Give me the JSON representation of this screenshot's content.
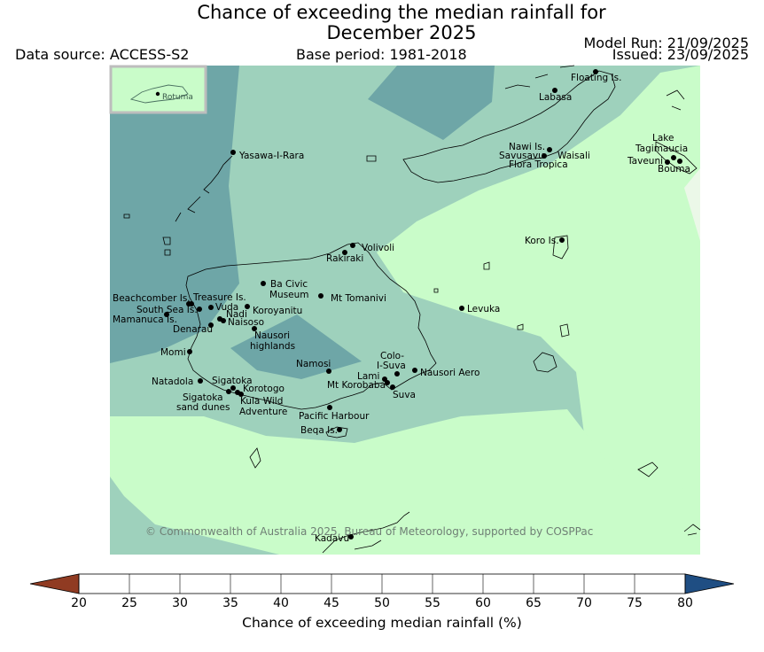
{
  "title_line1": "Chance of exceeding the median rainfall for",
  "title_line2": "December 2025",
  "data_source": "Data source: ACCESS-S2",
  "base_period": "Base period: 1981-2018",
  "model_run": "Model Run: 21/09/2025",
  "issued": "Issued: 23/09/2025",
  "inset_label": "Rotuma",
  "credit": "© Commonwealth of Australia 2025, Bureau of Meteorology, supported by COSPPac",
  "places": [
    {
      "name": "Floating Is."
    },
    {
      "name": "Labasa"
    },
    {
      "name": "Yasawa-I-Rara"
    },
    {
      "name": "Nawi Is."
    },
    {
      "name": "Savusavu"
    },
    {
      "name": "Waisali"
    },
    {
      "name": "Flora Tropica"
    },
    {
      "name": "Lake"
    },
    {
      "name": "Tagimaucia"
    },
    {
      "name": "Taveuni"
    },
    {
      "name": "Bouma"
    },
    {
      "name": "Koro Is."
    },
    {
      "name": "Volivoli"
    },
    {
      "name": "Rakiraki"
    },
    {
      "name": "Ba Civic"
    },
    {
      "name": "Museum"
    },
    {
      "name": "Mt Tomanivi"
    },
    {
      "name": "Beachcomber Is."
    },
    {
      "name": "Treasure Is."
    },
    {
      "name": "South Sea Is."
    },
    {
      "name": "Vuda"
    },
    {
      "name": "Koroyanitu"
    },
    {
      "name": "Levuka"
    },
    {
      "name": "Mamanuca Is."
    },
    {
      "name": "Nadi"
    },
    {
      "name": "Naisoso"
    },
    {
      "name": "Denarau"
    },
    {
      "name": "Nausori"
    },
    {
      "name": "highlands"
    },
    {
      "name": "Momi"
    },
    {
      "name": "Namosi"
    },
    {
      "name": "Colo-"
    },
    {
      "name": "I-Suva"
    },
    {
      "name": "Nausori Aero"
    },
    {
      "name": "Lami"
    },
    {
      "name": "Mt Korobaba"
    },
    {
      "name": "Suva"
    },
    {
      "name": "Natadola"
    },
    {
      "name": "Sigatoka"
    },
    {
      "name": "Korotogo"
    },
    {
      "name": "Sigatoka"
    },
    {
      "name": "sand dunes"
    },
    {
      "name": "Kula Wild"
    },
    {
      "name": "Adventure"
    },
    {
      "name": "Pacific Harbour"
    },
    {
      "name": "Beqa Is."
    },
    {
      "name": "Kadavu"
    }
  ],
  "colorbar": {
    "label": "Chance of exceeding median rainfall (%)",
    "ticks": [
      "20",
      "25",
      "30",
      "35",
      "40",
      "45",
      "50",
      "55",
      "60",
      "65",
      "70",
      "75",
      "80"
    ],
    "colors": [
      "#b04a26",
      "#cf6a37",
      "#e2964c",
      "#fcc966",
      "#ecebe5",
      "#ffffff",
      "#ffffff",
      "#ebf8e8",
      "#c9fcc9",
      "#9ed1bc",
      "#6ea6a7",
      "#3f7a99"
    ],
    "under_color": "#903b22",
    "over_color": "#1f4e83"
  },
  "map_colors": {
    "c55_60": "#ebf8e8",
    "c60_65": "#c9fcc9",
    "c65_70": "#9ed1bc",
    "c70_75": "#6ea6a7"
  }
}
